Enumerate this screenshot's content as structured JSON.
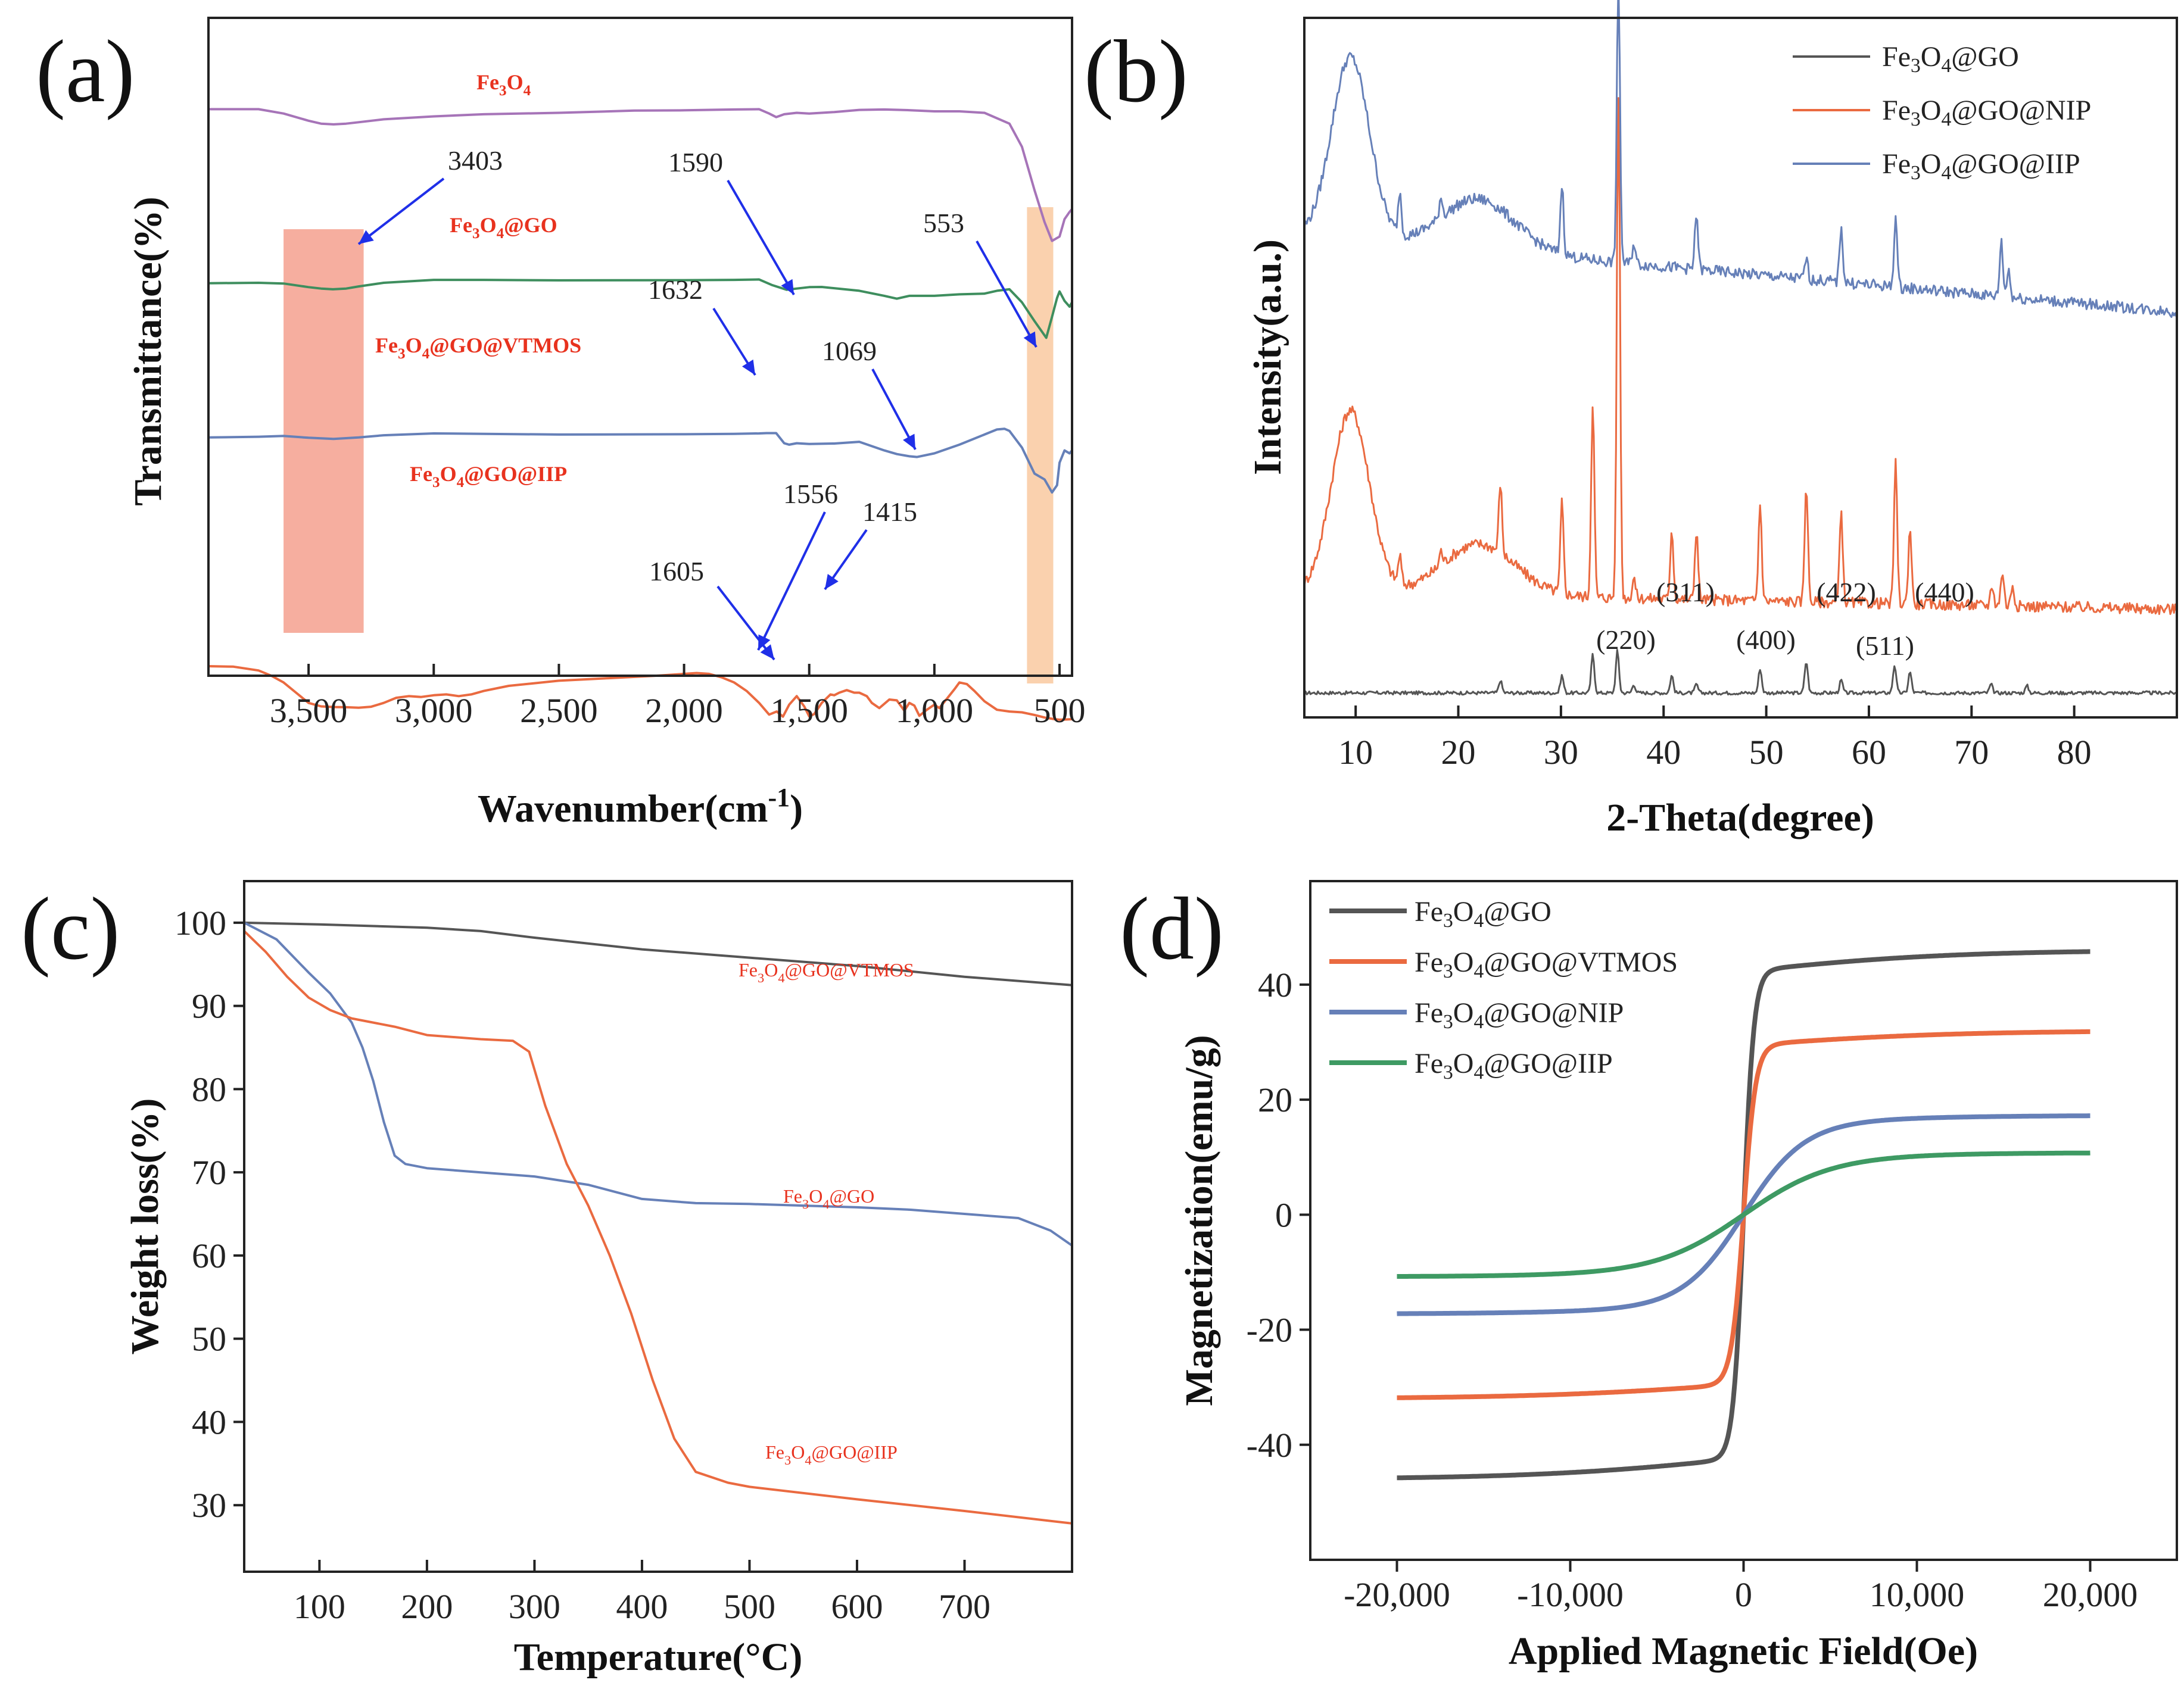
{
  "chart_data": [
    {
      "id": "a",
      "type": "line",
      "panel_label": "(a)",
      "xlabel_main": "Wavenumber(cm",
      "xlabel_sup": "-1",
      "xlabel_end": ")",
      "ylabel": "Transmittance(%)",
      "xlim": [
        3900,
        450
      ],
      "ylim": [
        0,
        100
      ],
      "x_ticks": [
        3500,
        3000,
        2500,
        2000,
        1500,
        1000,
        500
      ],
      "x_tick_labels": [
        "3,500",
        "3,000",
        "2,500",
        "2,000",
        "1,500",
        "1,000",
        "500"
      ],
      "series": [
        {
          "name": "Fe3O4",
          "label_parts": [
            "Fe",
            "3",
            "O",
            "4",
            ""
          ],
          "color": "#a674b8",
          "x": [
            3900,
            3700,
            3600,
            3500,
            3450,
            3400,
            3350,
            3300,
            3200,
            3000,
            2800,
            2500,
            2200,
            2000,
            1800,
            1700,
            1660,
            1632,
            1600,
            1550,
            1500,
            1400,
            1300,
            1200,
            1100,
            1000,
            900,
            800,
            700,
            650,
            600,
            560,
            530,
            500,
            480,
            460,
            450
          ],
          "y": [
            96,
            96,
            93,
            88,
            86,
            85.5,
            86,
            87,
            89,
            91,
            92.5,
            93.5,
            95,
            95.2,
            95.8,
            96,
            93,
            90.5,
            92.5,
            93.5,
            93,
            94,
            95.5,
            95.8,
            95.3,
            94.5,
            94.5,
            93.5,
            86,
            70,
            40,
            18,
            5,
            8,
            20,
            25,
            27
          ]
        },
        {
          "name": "Fe3O4@GO",
          "label_parts": [
            "Fe",
            "3",
            "O",
            "4",
            "@GO"
          ],
          "color": "#3e8e5e",
          "x": [
            3900,
            3700,
            3600,
            3500,
            3450,
            3403,
            3350,
            3300,
            3200,
            3000,
            2800,
            2500,
            2000,
            1800,
            1700,
            1650,
            1590,
            1550,
            1500,
            1450,
            1300,
            1200,
            1150,
            1100,
            1000,
            900,
            800,
            750,
            700,
            650,
            600,
            553,
            530,
            510,
            500,
            480,
            460,
            450
          ],
          "y": [
            71.2,
            71.5,
            71,
            68.5,
            67.5,
            67,
            67.5,
            69,
            71.5,
            73.5,
            73.5,
            73.2,
            73.3,
            73.5,
            73.8,
            70,
            66.7,
            67.5,
            68.5,
            68.6,
            66,
            62.5,
            60.5,
            62.5,
            62.5,
            63.5,
            64,
            66,
            67,
            58,
            45,
            33.5,
            48,
            61,
            65.5,
            59,
            55,
            58
          ]
        },
        {
          "name": "Fe3O4@GO@VTMOS",
          "label_parts": [
            "Fe",
            "3",
            "O",
            "4",
            "@GO@VTMOS"
          ],
          "color": "#6680b8",
          "x": [
            3900,
            3700,
            3600,
            3500,
            3450,
            3400,
            3350,
            3300,
            3200,
            3000,
            2800,
            2500,
            2000,
            1800,
            1700,
            1670,
            1632,
            1600,
            1580,
            1550,
            1500,
            1400,
            1300,
            1200,
            1150,
            1100,
            1069,
            1000,
            900,
            800,
            750,
            720,
            700,
            650,
            600,
            560,
            530,
            510,
            500,
            480,
            460,
            450
          ],
          "y": [
            51,
            51.5,
            52,
            50.8,
            50.4,
            50,
            50.5,
            51,
            52.5,
            53.8,
            53.5,
            53,
            53.2,
            53.5,
            53.8,
            54,
            54,
            47,
            46,
            47,
            46.5,
            46.8,
            48,
            42,
            39.5,
            38,
            37.5,
            40,
            46,
            53,
            56.5,
            57,
            55.5,
            44,
            26,
            22,
            13,
            18,
            33.5,
            42,
            40,
            42
          ]
        },
        {
          "name": "Fe3O4@GO@IIP",
          "label_parts": [
            "Fe",
            "3",
            "O",
            "4",
            "@GO@IIP"
          ],
          "color": "#ea6a40",
          "x": [
            3900,
            3800,
            3700,
            3650,
            3600,
            3550,
            3500,
            3450,
            3400,
            3350,
            3300,
            3250,
            3200,
            3150,
            3100,
            3050,
            3000,
            2950,
            2900,
            2850,
            2800,
            2700,
            2500,
            2300,
            2100,
            1950,
            1900,
            1850,
            1800,
            1750,
            1700,
            1660,
            1630,
            1605,
            1580,
            1550,
            1520,
            1500,
            1480,
            1450,
            1415,
            1400,
            1380,
            1350,
            1320,
            1300,
            1270,
            1250,
            1220,
            1180,
            1150,
            1120,
            1100,
            1080,
            1060,
            1030,
            1000,
            980,
            950,
            920,
            900,
            870,
            840,
            800,
            750,
            700,
            650,
            600,
            560,
            520,
            500,
            480,
            450
          ],
          "y": [
            32.5,
            32.2,
            30,
            27,
            23,
            17,
            11,
            9,
            8.6,
            8.5,
            8.2,
            8.8,
            11,
            14,
            15,
            14.5,
            15.5,
            16,
            15,
            16,
            18,
            21,
            24,
            25.5,
            27,
            28.5,
            28,
            26,
            23,
            18,
            11,
            4.2,
            6,
            3,
            10,
            15,
            9,
            3.2,
            4.5,
            11,
            16,
            15.5,
            17,
            18.5,
            17,
            17,
            15,
            11,
            8,
            13,
            12.5,
            6.5,
            11,
            9.5,
            3.5,
            7,
            10,
            8,
            13.5,
            19,
            23,
            22,
            18,
            12,
            7,
            6,
            5.5,
            4,
            2.5,
            1.5,
            1.2,
            1.3,
            1.5
          ]
        }
      ],
      "annotations": [
        {
          "text": "3403",
          "x": 3403
        },
        {
          "text": "1590",
          "x": 1590
        },
        {
          "text": "553",
          "x": 553
        },
        {
          "text": "1632",
          "x": 1632
        },
        {
          "text": "1069",
          "x": 1069
        },
        {
          "text": "1556",
          "x": 1556
        },
        {
          "text": "1415",
          "x": 1415
        },
        {
          "text": "1605",
          "x": 1605
        }
      ],
      "highlight_regions": [
        {
          "x_range": [
            3600,
            3280
          ],
          "color": "#f4a08e"
        },
        {
          "x_range": [
            630,
            525
          ],
          "color": "#f9c9a0"
        }
      ]
    },
    {
      "id": "b",
      "type": "line",
      "panel_label": "(b)",
      "xlabel": "2-Theta(degree)",
      "ylabel": "Intensity(a.u.)",
      "xlim": [
        5,
        90
      ],
      "ylim": [
        0,
        100
      ],
      "x_ticks": [
        10,
        20,
        30,
        40,
        50,
        60,
        70,
        80
      ],
      "x_tick_labels": [
        "10",
        "20",
        "30",
        "40",
        "50",
        "60",
        "70",
        "80"
      ],
      "series": [
        {
          "name": "Fe3O4@GO",
          "label_parts": [
            "Fe",
            "3",
            "O",
            "4",
            "@GO"
          ],
          "color": "#555555",
          "baseline": 3.5,
          "slope": 0,
          "hump": 0,
          "peaks": [
            [
              24.1,
              1.8
            ],
            [
              30.1,
              2.5
            ],
            [
              33.1,
              5.5
            ],
            [
              35.5,
              6
            ],
            [
              37.1,
              1.2
            ],
            [
              40.8,
              2.5
            ],
            [
              43.2,
              1.2
            ],
            [
              49.4,
              3.5
            ],
            [
              53.9,
              4.5
            ],
            [
              57.3,
              1.8
            ],
            [
              62.5,
              4
            ],
            [
              64,
              3
            ],
            [
              71.9,
              1.2
            ],
            [
              75.4,
              1
            ]
          ]
        },
        {
          "name": "Fe3O4@GO@NIP",
          "label_parts": [
            "Fe",
            "3",
            "O",
            "4",
            "@GO@NIP"
          ],
          "color": "#ea6a40",
          "baseline": 18,
          "slope": -0.03,
          "hump": 26,
          "peaks": [
            [
              14.3,
              4
            ],
            [
              18.3,
              2
            ],
            [
              24.1,
              10
            ],
            [
              30.1,
              13
            ],
            [
              33.1,
              28
            ],
            [
              35.6,
              72
            ],
            [
              37.1,
              3
            ],
            [
              40.8,
              10
            ],
            [
              43.2,
              10
            ],
            [
              49.4,
              14
            ],
            [
              53.9,
              17
            ],
            [
              57.3,
              13
            ],
            [
              62.6,
              20
            ],
            [
              64,
              11
            ],
            [
              72,
              3
            ],
            [
              73,
              5
            ],
            [
              74,
              3
            ]
          ]
        },
        {
          "name": "Fe3O4@GO@IIP",
          "label_parts": [
            "Fe",
            "3",
            "O",
            "4",
            "@GO@IIP"
          ],
          "color": "#6680b8",
          "baseline": 69,
          "slope": -0.13,
          "hump": 26,
          "peaks": [
            [
              14.3,
              6
            ],
            [
              18.3,
              3
            ],
            [
              30.1,
              10
            ],
            [
              35.6,
              40
            ],
            [
              37.1,
              3
            ],
            [
              43.2,
              8
            ],
            [
              53.9,
              3
            ],
            [
              57.3,
              8
            ],
            [
              62.6,
              10
            ],
            [
              72.9,
              8
            ],
            [
              73.6,
              4
            ]
          ]
        }
      ],
      "annotations": [
        "(220)",
        "(311)",
        "(400)",
        "(422)",
        "(511)",
        "(440)"
      ]
    },
    {
      "id": "c",
      "type": "line",
      "panel_label": "(c)",
      "xlabel": "Temperature(°C)",
      "ylabel": "Weight loss(%)",
      "xlim": [
        30,
        800
      ],
      "ylim": [
        22,
        105
      ],
      "x_ticks": [
        100,
        200,
        300,
        400,
        500,
        600,
        700
      ],
      "y_ticks": [
        30,
        40,
        50,
        60,
        70,
        80,
        90,
        100
      ],
      "x_tick_labels": [
        "100",
        "200",
        "300",
        "400",
        "500",
        "600",
        "700"
      ],
      "y_tick_labels": [
        "30",
        "40",
        "50",
        "60",
        "70",
        "80",
        "90",
        "100"
      ],
      "series": [
        {
          "name": "Fe3O4@GO@VTMOS",
          "label_parts": [
            "Fe",
            "3",
            "O",
            "4",
            "@GO@VTMOS"
          ],
          "color": "#555555",
          "x": [
            30,
            100,
            200,
            250,
            300,
            400,
            500,
            600,
            700,
            800
          ],
          "y": [
            100,
            99.8,
            99.4,
            99,
            98.2,
            96.8,
            95.8,
            94.8,
            93.5,
            92.5
          ]
        },
        {
          "name": "Fe3O4@GO",
          "label_parts": [
            "Fe",
            "3",
            "O",
            "4",
            "@GO"
          ],
          "color": "#6680b8",
          "x": [
            30,
            60,
            90,
            110,
            130,
            140,
            150,
            160,
            170,
            180,
            200,
            250,
            300,
            350,
            400,
            450,
            500,
            600,
            650,
            700,
            750,
            780,
            800
          ],
          "y": [
            100,
            98,
            94,
            91.5,
            88,
            85,
            81,
            76,
            72,
            71,
            70.5,
            70,
            69.5,
            68.5,
            66.8,
            66.3,
            66.2,
            65.8,
            65.5,
            65,
            64.5,
            63,
            61.2
          ]
        },
        {
          "name": "Fe3O4@GO@IIP",
          "label_parts": [
            "Fe",
            "3",
            "O",
            "4",
            "@GO@IIP"
          ],
          "color": "#ea6a40",
          "x": [
            30,
            50,
            70,
            90,
            110,
            130,
            150,
            170,
            200,
            250,
            280,
            295,
            310,
            330,
            350,
            370,
            390,
            410,
            430,
            450,
            480,
            500,
            600,
            700,
            800
          ],
          "y": [
            99,
            96.5,
            93.5,
            91,
            89.5,
            88.5,
            88,
            87.5,
            86.5,
            86,
            85.8,
            84.5,
            78,
            71,
            66,
            60,
            53,
            45,
            38,
            34,
            32.7,
            32.2,
            30.7,
            29.3,
            27.8
          ]
        }
      ]
    },
    {
      "id": "d",
      "type": "line",
      "panel_label": "(d)",
      "xlabel": "Applied Magnetic Field(Oe)",
      "ylabel": "Magnetization(emu/g)",
      "xlim": [
        -25000,
        25000
      ],
      "ylim": [
        -60,
        58
      ],
      "x_ticks": [
        -20000,
        -10000,
        0,
        10000,
        20000
      ],
      "y_ticks": [
        -40,
        -20,
        0,
        20,
        40
      ],
      "x_tick_labels": [
        "-20,000",
        "-10,000",
        "0",
        "10,000",
        "20,000"
      ],
      "y_tick_labels": [
        "-40",
        "-20",
        "0",
        "20",
        "40"
      ],
      "series": [
        {
          "name": "Fe3O4@GO",
          "label_parts": [
            "Fe",
            "3",
            "O",
            "4",
            "@GO"
          ],
          "color": "#555555",
          "ms": 46,
          "h0": 600,
          "lin": 2.5e-05
        },
        {
          "name": "Fe3O4@GO@VTMOS",
          "label_parts": [
            "Fe",
            "3",
            "O",
            "4",
            "@GO@VTMOS"
          ],
          "color": "#ea6a40",
          "ms": 32,
          "h0": 700,
          "lin": 3e-05
        },
        {
          "name": "Fe3O4@GO@NIP",
          "label_parts": [
            "Fe",
            "3",
            "O",
            "4",
            "@GO@NIP"
          ],
          "color": "#6680b8",
          "ms": 17.3,
          "h0": 3500,
          "lin": 2e-05
        },
        {
          "name": "Fe3O4@GO@IIP",
          "label_parts": [
            "Fe",
            "3",
            "O",
            "4",
            "@GO@IIP"
          ],
          "color": "#3e9a63",
          "ms": 10.8,
          "h0": 5000,
          "lin": 2e-05
        }
      ]
    }
  ]
}
